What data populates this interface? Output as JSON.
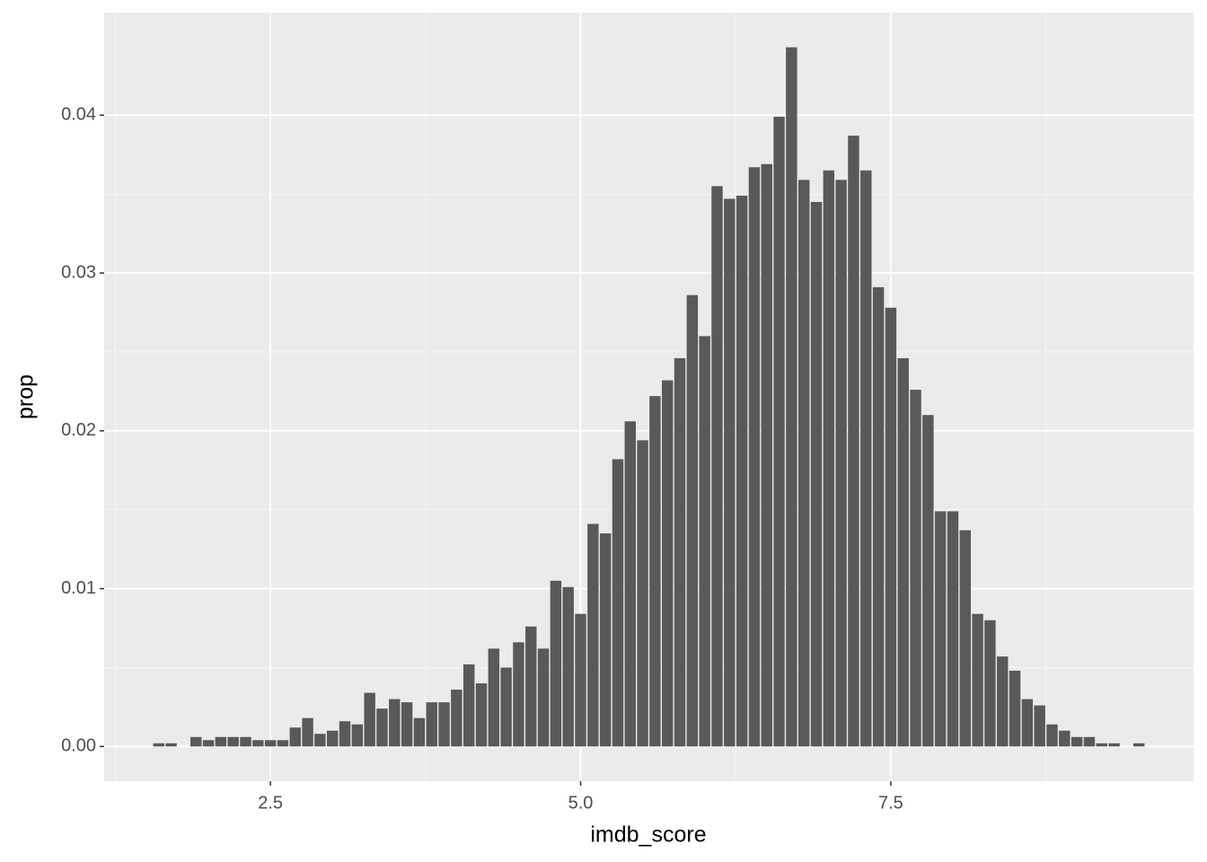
{
  "chart_data": {
    "type": "bar",
    "x_label": "imdb_score",
    "y_label": "prop",
    "x": [
      1.6,
      1.7,
      1.9,
      2.0,
      2.1,
      2.2,
      2.3,
      2.4,
      2.5,
      2.6,
      2.7,
      2.8,
      2.9,
      3.0,
      3.1,
      3.2,
      3.3,
      3.4,
      3.5,
      3.6,
      3.7,
      3.8,
      3.9,
      4.0,
      4.1,
      4.2,
      4.3,
      4.4,
      4.5,
      4.6,
      4.7,
      4.8,
      4.9,
      5.0,
      5.1,
      5.2,
      5.3,
      5.4,
      5.5,
      5.6,
      5.7,
      5.8,
      5.9,
      6.0,
      6.1,
      6.2,
      6.3,
      6.4,
      6.5,
      6.6,
      6.7,
      6.8,
      6.9,
      7.0,
      7.1,
      7.2,
      7.3,
      7.4,
      7.5,
      7.6,
      7.7,
      7.8,
      7.9,
      8.0,
      8.1,
      8.2,
      8.3,
      8.4,
      8.5,
      8.6,
      8.7,
      8.8,
      8.9,
      9.0,
      9.1,
      9.2,
      9.3,
      9.5
    ],
    "values": [
      0.0002,
      0.0002,
      0.0006,
      0.0004,
      0.0006,
      0.0006,
      0.0006,
      0.0004,
      0.0004,
      0.0004,
      0.0012,
      0.0018,
      0.0008,
      0.001,
      0.0016,
      0.0014,
      0.0034,
      0.0024,
      0.003,
      0.0028,
      0.0018,
      0.0028,
      0.0028,
      0.0036,
      0.0052,
      0.004,
      0.0062,
      0.005,
      0.0066,
      0.0076,
      0.0062,
      0.0105,
      0.0101,
      0.0084,
      0.0141,
      0.0135,
      0.0182,
      0.0206,
      0.0194,
      0.0222,
      0.0232,
      0.0246,
      0.0286,
      0.026,
      0.0355,
      0.0347,
      0.0349,
      0.0367,
      0.0369,
      0.0399,
      0.0443,
      0.0359,
      0.0345,
      0.0365,
      0.0359,
      0.0387,
      0.0365,
      0.0291,
      0.0278,
      0.0246,
      0.0226,
      0.021,
      0.0149,
      0.0149,
      0.0137,
      0.0084,
      0.008,
      0.0057,
      0.0048,
      0.003,
      0.0026,
      0.0014,
      0.001,
      0.0006,
      0.0006,
      0.0002,
      0.0002,
      0.0002
    ],
    "color": "#595959",
    "xlim": [
      1.16,
      9.94
    ],
    "ylim": [
      -0.0022,
      0.0465
    ],
    "xticks": [
      2.5,
      {
        "value": 5.0,
        "label": "5.0"
      },
      7.5
    ],
    "yticks": [
      {
        "value": 0,
        "label": "0.00"
      },
      0.01,
      0.02,
      0.03,
      0.04
    ],
    "x_minor_ticks": [
      1.25,
      3.75,
      6.25,
      8.75
    ],
    "y_minor_ticks": [
      0.005,
      0.015,
      0.025,
      0.035
    ],
    "grid": true
  }
}
